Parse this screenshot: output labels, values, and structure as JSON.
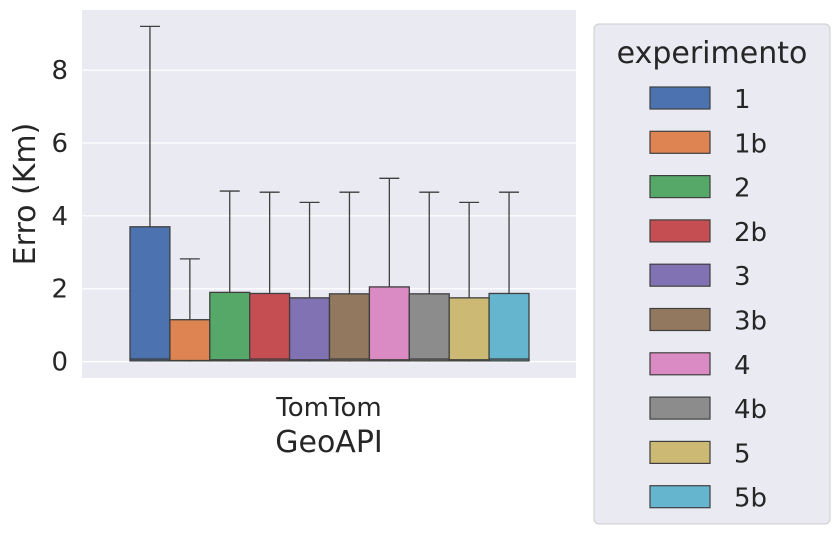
{
  "chart_data": {
    "type": "box",
    "title": "",
    "xlabel": "GeoAPI",
    "ylabel": "Erro (Km)",
    "categories": [
      "TomTom"
    ],
    "ylim": [
      -0.45,
      9.65
    ],
    "yticks": [
      0,
      2,
      4,
      6,
      8
    ],
    "grid": true,
    "legend_title": "experimento",
    "legend_position": "outside-right",
    "series": [
      {
        "name": "1",
        "color": "#4c72b0",
        "min": 0,
        "q1": 0.02,
        "median": 0.07,
        "q3": 3.7,
        "max": 9.2
      },
      {
        "name": "1b",
        "color": "#dd8452",
        "min": 0,
        "q1": 0.02,
        "median": 0.03,
        "q3": 1.15,
        "max": 2.82
      },
      {
        "name": "2",
        "color": "#55a868",
        "min": 0,
        "q1": 0.02,
        "median": 0.05,
        "q3": 1.9,
        "max": 4.68
      },
      {
        "name": "2b",
        "color": "#c44e52",
        "min": 0,
        "q1": 0.02,
        "median": 0.07,
        "q3": 1.87,
        "max": 4.65
      },
      {
        "name": "3",
        "color": "#8172b3",
        "min": 0,
        "q1": 0.02,
        "median": 0.05,
        "q3": 1.75,
        "max": 4.37
      },
      {
        "name": "3b",
        "color": "#937860",
        "min": 0,
        "q1": 0.02,
        "median": 0.07,
        "q3": 1.86,
        "max": 4.65
      },
      {
        "name": "4",
        "color": "#da8bc3",
        "min": 0,
        "q1": 0.02,
        "median": 0.05,
        "q3": 2.05,
        "max": 5.03
      },
      {
        "name": "4b",
        "color": "#8c8c8c",
        "min": 0,
        "q1": 0.02,
        "median": 0.07,
        "q3": 1.86,
        "max": 4.65
      },
      {
        "name": "5",
        "color": "#ccb974",
        "min": 0,
        "q1": 0.02,
        "median": 0.05,
        "q3": 1.75,
        "max": 4.37
      },
      {
        "name": "5b",
        "color": "#64b5cd",
        "min": 0,
        "q1": 0.02,
        "median": 0.07,
        "q3": 1.87,
        "max": 4.65
      }
    ]
  }
}
